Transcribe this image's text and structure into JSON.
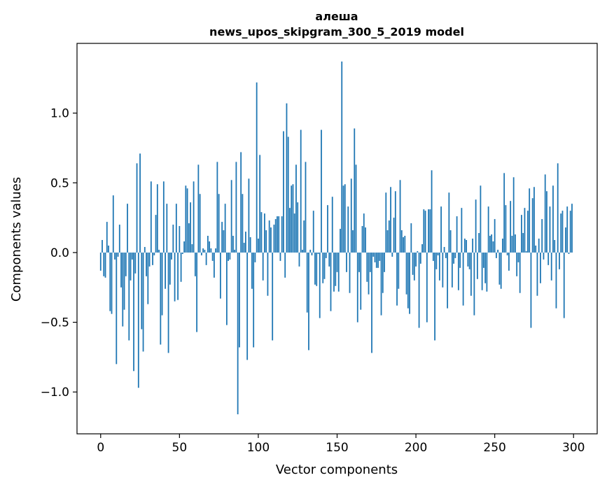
{
  "chart_data": {
    "type": "bar",
    "title_line1": "алеша",
    "title_line2": "news_upos_skipgram_300_5_2019 model",
    "xlabel": "Vector components",
    "ylabel": "Components values",
    "xlim": [
      -15,
      315
    ],
    "ylim": [
      -1.3,
      1.5
    ],
    "xticks": [
      0,
      50,
      100,
      150,
      200,
      250,
      300
    ],
    "xtick_labels": [
      "0",
      "50",
      "100",
      "150",
      "200",
      "250",
      "300"
    ],
    "yticks": [
      -1.0,
      -0.5,
      0.0,
      0.5,
      1.0
    ],
    "ytick_labels": [
      "−1.0",
      "−0.5",
      "0.0",
      "0.5",
      "1.0"
    ],
    "bar_color": "#1f77b4",
    "grid": false,
    "x": "0..299 (one bar per vector component)",
    "values": [
      -0.13,
      0.09,
      -0.17,
      -0.18,
      0.22,
      0.05,
      -0.42,
      -0.44,
      0.41,
      -0.05,
      -0.8,
      -0.03,
      0.2,
      -0.25,
      -0.53,
      -0.41,
      -0.17,
      0.35,
      -0.63,
      -0.2,
      -0.05,
      -0.85,
      -0.15,
      0.64,
      -0.97,
      0.71,
      -0.55,
      -0.71,
      0.04,
      -0.17,
      -0.37,
      -0.1,
      0.51,
      -0.09,
      -0.02,
      0.27,
      0.49,
      0.02,
      -0.66,
      -0.45,
      0.51,
      -0.26,
      0.35,
      -0.72,
      -0.23,
      -0.05,
      0.2,
      -0.35,
      0.35,
      -0.34,
      0.19,
      -0.21,
      -0.01,
      0.08,
      0.48,
      0.46,
      0.21,
      0.36,
      0.06,
      0.51,
      -0.17,
      -0.57,
      0.63,
      0.42,
      -0.02,
      0.03,
      0.02,
      -0.09,
      0.12,
      0.08,
      0.03,
      -0.06,
      -0.18,
      0.03,
      0.65,
      0.42,
      -0.33,
      0.22,
      0.16,
      0.35,
      -0.52,
      -0.06,
      -0.05,
      0.52,
      0.12,
      0.02,
      0.65,
      -1.16,
      -0.68,
      0.72,
      0.42,
      0.07,
      0.15,
      -0.77,
      0.53,
      0.11,
      -0.26,
      -0.68,
      -0.07,
      1.22,
      0.1,
      0.7,
      0.29,
      -0.2,
      0.28,
      0.16,
      -0.31,
      0.23,
      0.18,
      -0.63,
      0.2,
      0.24,
      0.26,
      0.26,
      -0.06,
      0.26,
      0.87,
      -0.18,
      1.07,
      0.83,
      0.32,
      0.48,
      0.49,
      0.28,
      0.63,
      0.36,
      -0.1,
      0.88,
      0.02,
      0.23,
      0.65,
      -0.43,
      -0.7,
      0.02,
      -0.02,
      0.3,
      -0.23,
      -0.24,
      -0.01,
      -0.47,
      0.88,
      -0.22,
      -0.19,
      -0.04,
      0.34,
      -0.1,
      -0.42,
      0.4,
      -0.28,
      -0.24,
      -0.14,
      -0.28,
      0.17,
      1.37,
      0.48,
      0.49,
      -0.14,
      0.33,
      -0.29,
      0.53,
      0.16,
      0.89,
      0.63,
      -0.5,
      -0.14,
      -0.41,
      0.19,
      0.28,
      0.18,
      -0.21,
      -0.3,
      -0.14,
      -0.72,
      -0.03,
      -0.07,
      -0.11,
      -0.11,
      -0.06,
      -0.45,
      -0.29,
      -0.14,
      0.43,
      0.16,
      0.23,
      0.47,
      -0.03,
      0.25,
      0.44,
      -0.38,
      -0.26,
      0.52,
      0.16,
      0.11,
      0.12,
      -0.3,
      -0.4,
      -0.44,
      0.21,
      -0.16,
      -0.2,
      -0.1,
      0.01,
      -0.54,
      -0.08,
      0.06,
      0.31,
      0.3,
      -0.5,
      0.31,
      0.31,
      0.59,
      -0.06,
      -0.63,
      -0.12,
      -0.02,
      -0.2,
      0.33,
      -0.25,
      0.04,
      -0.04,
      -0.4,
      0.43,
      0.16,
      -0.25,
      -0.08,
      -0.04,
      0.26,
      -0.27,
      -0.11,
      0.32,
      -0.38,
      0.1,
      0.09,
      -0.1,
      -0.12,
      -0.31,
      0.1,
      -0.45,
      0.38,
      -0.19,
      0.14,
      0.48,
      -0.27,
      -0.11,
      -0.22,
      -0.28,
      0.33,
      0.12,
      0.13,
      0.08,
      0.24,
      -0.04,
      0.02,
      -0.23,
      -0.26,
      0.1,
      0.57,
      0.34,
      -0.02,
      -0.13,
      0.37,
      0.12,
      0.54,
      0.13,
      -0.17,
      -0.07,
      -0.29,
      0.27,
      0.14,
      0.32,
      0.01,
      0.3,
      0.46,
      -0.54,
      0.39,
      0.47,
      0.05,
      -0.31,
      0.1,
      -0.22,
      0.24,
      -0.05,
      0.56,
      0.44,
      -0.09,
      0.33,
      -0.2,
      0.48,
      0.09,
      -0.4,
      0.64,
      -0.12,
      0.28,
      0.3,
      -0.47,
      0.18,
      0.33,
      -0.01,
      0.3,
      0.35
    ]
  }
}
